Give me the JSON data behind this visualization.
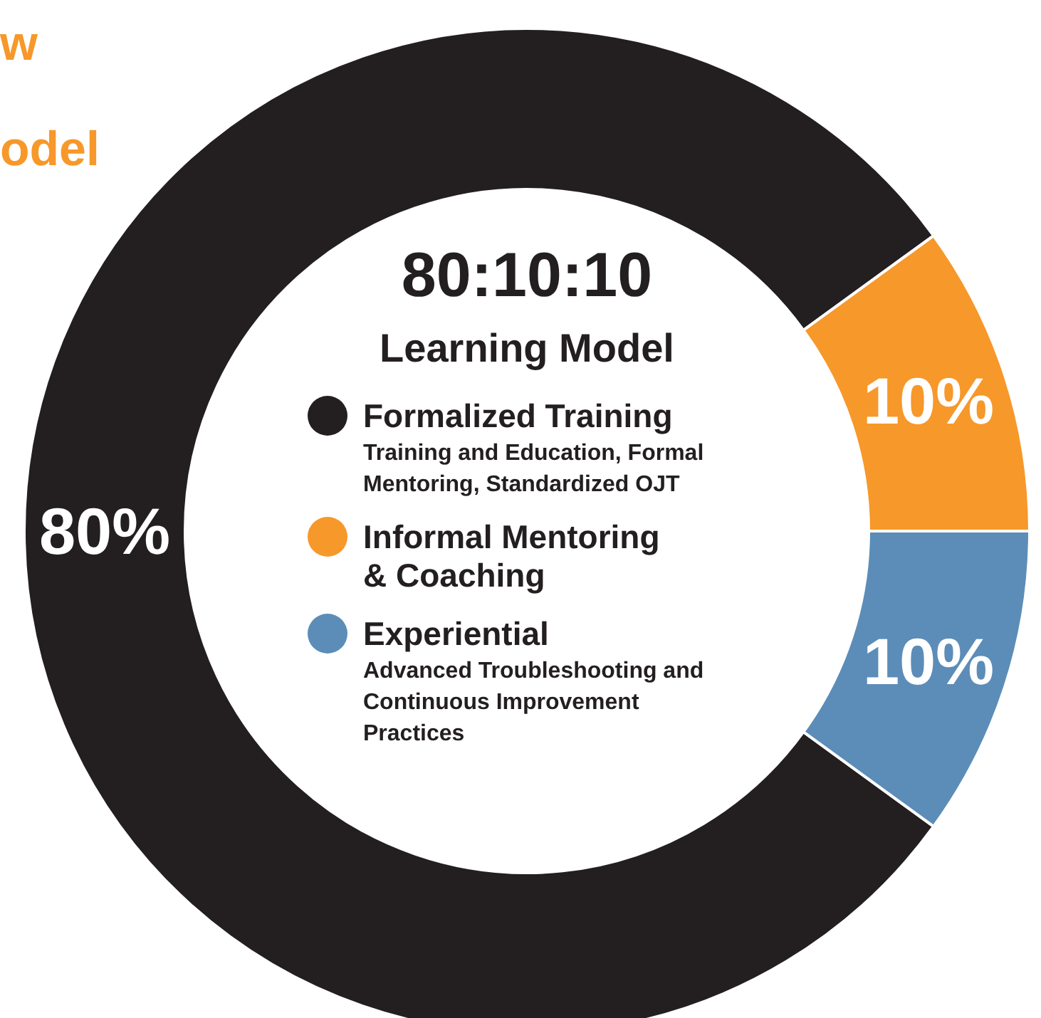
{
  "chart_data": {
    "type": "donut",
    "title": "80:10:10",
    "subtitle": "Learning Model",
    "categories": [
      "Formalized Training",
      "Informal Mentoring & Coaching",
      "Experiential"
    ],
    "values": [
      80,
      10,
      10
    ],
    "colors": [
      "#231f20",
      "#f7982a",
      "#5b8db8"
    ],
    "value_labels": [
      "80%",
      "10%",
      "10%"
    ],
    "legend": "center",
    "annotations": [
      "w",
      "odel",
      "Training and Education, Formal Mentoring, Standardized OJT",
      "Advanced Troubleshooting and Continuous Improvement Practices"
    ]
  }
}
